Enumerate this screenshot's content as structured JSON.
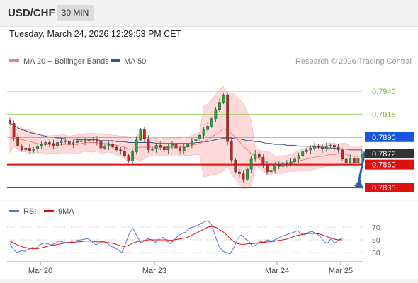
{
  "header": {
    "symbol": "USD/CHF",
    "timeframe": "30 MIN",
    "datetime": "Tuesday, March 24, 2026 12:29:53 PM CET"
  },
  "legend": {
    "ma20_label": "MA 20 + Bollinger Bands",
    "ma50_label": "MA 50",
    "credit": "Research © 2026 Trading Central",
    "rsi_label": "RSI",
    "ma9_label": "9MA"
  },
  "colors": {
    "bull": "#22a83a",
    "bear": "#d41f1f",
    "band_fill": "#fdd9d9",
    "ma20": "#f08080",
    "ma50": "#34568b",
    "resistance_green": "#9fd466",
    "resistance_blue": "#1a56db",
    "support_red": "#e01010",
    "current": "#333333",
    "rsi": "#5577dd",
    "rsi_ma": "#e01010"
  },
  "chart_data": {
    "type": "candlestick",
    "x_ticks": [
      "Mar 20",
      "Mar 23",
      "Mar 24",
      "Mar 25"
    ],
    "levels": [
      {
        "label": "0.7940",
        "value": 0.794,
        "kind": "resistance",
        "color": "#72b82c"
      },
      {
        "label": "0.7915",
        "value": 0.7915,
        "kind": "resistance",
        "color": "#72b82c"
      },
      {
        "label": "0.7890",
        "value": 0.789,
        "kind": "pivot",
        "color": "#1a56db"
      },
      {
        "label": "0.7872",
        "value": 0.7872,
        "kind": "current",
        "color": "#333333"
      },
      {
        "label": "0.7860",
        "value": 0.786,
        "kind": "support",
        "color": "#e01010"
      },
      {
        "label": "0.7835",
        "value": 0.7835,
        "kind": "support",
        "color": "#e01010"
      }
    ],
    "forecast_arrow": {
      "from": 0.7874,
      "to": 0.7835
    },
    "price_close": [
      0.7905,
      0.789,
      0.788,
      0.7876,
      0.7878,
      0.7875,
      0.7877,
      0.788,
      0.7882,
      0.7884,
      0.7883,
      0.788,
      0.7884,
      0.7886,
      0.7885,
      0.7882,
      0.7884,
      0.7886,
      0.7885,
      0.7886,
      0.7887,
      0.7888,
      0.7885,
      0.7878,
      0.788,
      0.7882,
      0.7879,
      0.7876,
      0.7875,
      0.787,
      0.7864,
      0.7874,
      0.7887,
      0.7898,
      0.7888,
      0.7876,
      0.7877,
      0.7881,
      0.7879,
      0.7876,
      0.788,
      0.7882,
      0.7878,
      0.7875,
      0.7879,
      0.7882,
      0.7886,
      0.7888,
      0.7892,
      0.7898,
      0.7902,
      0.791,
      0.792,
      0.7928,
      0.7936,
      0.7885,
      0.7865,
      0.7852,
      0.785,
      0.7844,
      0.7855,
      0.7866,
      0.7872,
      0.7868,
      0.786,
      0.7852,
      0.7854,
      0.786,
      0.7858,
      0.7862,
      0.7861,
      0.7863,
      0.7866,
      0.787,
      0.7874,
      0.7876,
      0.7878,
      0.788,
      0.7879,
      0.7877,
      0.788,
      0.7881,
      0.7879,
      0.7876,
      0.7866,
      0.7862,
      0.7867,
      0.7862,
      0.7867,
      0.7872
    ],
    "ma20": [
      0.7888,
      0.7889,
      0.7888,
      0.7887,
      0.7886,
      0.7885,
      0.7884,
      0.7883,
      0.7882,
      0.7882,
      0.7882,
      0.7882,
      0.7882,
      0.7882,
      0.7882,
      0.7882,
      0.7882,
      0.7882,
      0.7883,
      0.7884,
      0.7884,
      0.7884,
      0.7884,
      0.7883,
      0.7883,
      0.7883,
      0.7882,
      0.7881,
      0.788,
      0.7879,
      0.7877,
      0.7877,
      0.7878,
      0.7879,
      0.7879,
      0.7879,
      0.7879,
      0.7879,
      0.7879,
      0.7879,
      0.7879,
      0.7879,
      0.7879,
      0.7879,
      0.7879,
      0.788,
      0.7881,
      0.7882,
      0.7883,
      0.7885,
      0.7887,
      0.789,
      0.7893,
      0.7896,
      0.7899,
      0.7897,
      0.7894,
      0.789,
      0.7885,
      0.788,
      0.7876,
      0.7872,
      0.7869,
      0.7866,
      0.7864,
      0.7862,
      0.7861,
      0.786,
      0.786,
      0.786,
      0.7861,
      0.7862,
      0.7863,
      0.7864,
      0.7865,
      0.7866,
      0.7867,
      0.7868,
      0.7869,
      0.7869,
      0.787,
      0.7871,
      0.7871,
      0.7872,
      0.7872,
      0.7871,
      0.787,
      0.7869,
      0.7869,
      0.787
    ],
    "ma50": [
      0.7905,
      0.7903,
      0.79,
      0.7898,
      0.7897,
      0.7895,
      0.7894,
      0.7893,
      0.7892,
      0.7891,
      0.789,
      0.789,
      0.7889,
      0.7889,
      0.7888,
      0.7888,
      0.7888,
      0.7887,
      0.7887,
      0.7887,
      0.7887,
      0.7887,
      0.7887,
      0.7886,
      0.7886,
      0.7886,
      0.7886,
      0.7885,
      0.7885,
      0.7885,
      0.7884,
      0.7884,
      0.7884,
      0.7884,
      0.7884,
      0.7884,
      0.7884,
      0.7883,
      0.7883,
      0.7883,
      0.7883,
      0.7883,
      0.7883,
      0.7883,
      0.7883,
      0.7883,
      0.7883,
      0.7884,
      0.7884,
      0.7885,
      0.7885,
      0.7886,
      0.7887,
      0.7888,
      0.7889,
      0.7889,
      0.7889,
      0.7888,
      0.7888,
      0.7887,
      0.7886,
      0.7886,
      0.7885,
      0.7885,
      0.7884,
      0.7883,
      0.7883,
      0.7882,
      0.7882,
      0.7882,
      0.7881,
      0.7881,
      0.7881,
      0.788,
      0.788,
      0.788,
      0.788,
      0.7879,
      0.7879,
      0.7879,
      0.7878,
      0.7878,
      0.7878,
      0.7877,
      0.7877,
      0.7877,
      0.7876,
      0.7876,
      0.7876,
      0.7876
    ],
    "rsi": [
      44,
      34,
      30,
      33,
      32,
      35,
      38,
      37,
      42,
      45,
      44,
      42,
      44,
      48,
      47,
      46,
      46,
      48,
      49,
      50,
      51,
      52,
      47,
      42,
      45,
      48,
      45,
      40,
      38,
      34,
      30,
      45,
      60,
      68,
      56,
      46,
      48,
      52,
      50,
      46,
      52,
      54,
      48,
      44,
      50,
      56,
      60,
      62,
      68,
      70,
      72,
      75,
      78,
      80,
      74,
      56,
      40,
      32,
      30,
      28,
      38,
      52,
      58,
      52,
      48,
      40,
      42,
      48,
      46,
      50,
      48,
      50,
      53,
      56,
      58,
      60,
      62,
      64,
      60,
      58,
      62,
      63,
      60,
      56,
      48,
      44,
      52,
      45,
      50,
      52
    ],
    "rsi_ma": [
      48,
      45,
      42,
      40,
      38,
      37,
      36,
      36,
      37,
      38,
      40,
      41,
      42,
      43,
      44,
      45,
      46,
      46,
      47,
      47,
      48,
      48,
      48,
      47,
      47,
      47,
      46,
      45,
      44,
      42,
      40,
      40,
      42,
      45,
      47,
      48,
      49,
      50,
      50,
      50,
      50,
      50,
      50,
      49,
      50,
      51,
      52,
      53,
      55,
      58,
      61,
      64,
      67,
      70,
      71,
      70,
      67,
      63,
      58,
      52,
      47,
      44,
      43,
      43,
      44,
      44,
      45,
      46,
      46,
      47,
      47,
      48,
      49,
      50,
      51,
      53,
      55,
      57,
      58,
      59,
      60,
      60,
      60,
      59,
      57,
      55,
      53,
      51,
      50,
      50
    ],
    "rsi_ticks": [
      70,
      50,
      30
    ]
  }
}
